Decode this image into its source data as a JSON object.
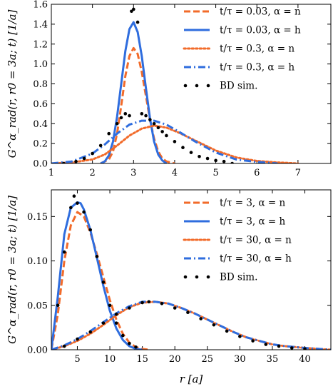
{
  "colors": {
    "orange": "#F26B2A",
    "blue": "#2F6DDE",
    "black": "#000000"
  },
  "chart_data": [
    {
      "type": "line",
      "ylabel": "G^α_rad(r, r0 = 3a; t) [1/a]",
      "xlabel": "",
      "xlim": [
        1.0,
        7.8
      ],
      "ylim": [
        0.0,
        1.6
      ],
      "xticks": [
        "1",
        "2",
        "3",
        "4",
        "5",
        "6",
        "7"
      ],
      "yticks": [
        "0.0",
        "0.2",
        "0.4",
        "0.6",
        "0.8",
        "1.0",
        "1.2",
        "1.4",
        "1.6"
      ],
      "legend_position": "top-right",
      "series": [
        {
          "name": "t/τ = 0.03, α = n",
          "style": "dashed",
          "color": "#F26B2A",
          "x": [
            2.2,
            2.4,
            2.5,
            2.6,
            2.7,
            2.8,
            2.9,
            3.0,
            3.1,
            3.2,
            3.3,
            3.4,
            3.5,
            3.6,
            3.7,
            3.8,
            4.0
          ],
          "y": [
            0.0,
            0.04,
            0.12,
            0.3,
            0.58,
            0.88,
            1.08,
            1.16,
            1.1,
            0.92,
            0.68,
            0.44,
            0.25,
            0.12,
            0.05,
            0.02,
            0.0
          ]
        },
        {
          "name": "t/τ = 0.03, α = h",
          "style": "solid",
          "color": "#2F6DDE",
          "x": [
            2.2,
            2.3,
            2.4,
            2.5,
            2.6,
            2.7,
            2.8,
            2.9,
            3.0,
            3.1,
            3.2,
            3.3,
            3.4,
            3.5,
            3.6,
            3.7,
            3.8
          ],
          "y": [
            0.0,
            0.02,
            0.08,
            0.22,
            0.47,
            0.8,
            1.13,
            1.35,
            1.42,
            1.32,
            1.08,
            0.76,
            0.45,
            0.22,
            0.09,
            0.03,
            0.0
          ]
        },
        {
          "name": "t/τ = 0.3, α = n",
          "style": "dotted",
          "color": "#F26B2A",
          "x": [
            1.0,
            1.5,
            2.0,
            2.3,
            2.6,
            2.9,
            3.2,
            3.5,
            3.8,
            4.1,
            4.5,
            5.0,
            5.5,
            6.0,
            6.5,
            7.0
          ],
          "y": [
            0.0,
            0.01,
            0.04,
            0.09,
            0.18,
            0.28,
            0.35,
            0.38,
            0.36,
            0.31,
            0.23,
            0.13,
            0.06,
            0.025,
            0.01,
            0.0
          ]
        },
        {
          "name": "t/τ = 0.3, α = h",
          "style": "dashdot",
          "color": "#2F6DDE",
          "x": [
            1.0,
            1.5,
            2.0,
            2.3,
            2.6,
            2.9,
            3.2,
            3.5,
            3.8,
            4.1,
            4.5,
            5.0,
            5.5,
            6.0,
            6.5
          ],
          "y": [
            0.0,
            0.02,
            0.1,
            0.19,
            0.3,
            0.39,
            0.43,
            0.43,
            0.39,
            0.32,
            0.22,
            0.11,
            0.04,
            0.015,
            0.0
          ]
        },
        {
          "name": "BD sim.",
          "style": "points",
          "color": "#000000",
          "x": [
            1.3,
            1.6,
            1.8,
            2.0,
            2.2,
            2.4,
            2.6,
            2.7,
            2.8,
            2.9,
            2.95,
            3.0,
            3.1,
            3.2,
            3.3,
            3.4,
            3.5,
            3.6,
            3.7,
            3.8,
            4.0,
            4.2,
            4.4,
            4.6,
            4.8,
            5.0,
            5.2,
            5.4
          ],
          "y": [
            0.0,
            0.02,
            0.05,
            0.1,
            0.18,
            0.3,
            0.4,
            0.46,
            0.5,
            0.48,
            1.53,
            1.55,
            1.42,
            0.5,
            0.48,
            0.44,
            0.4,
            0.36,
            0.32,
            0.28,
            0.22,
            0.16,
            0.11,
            0.07,
            0.05,
            0.03,
            0.02,
            0.0
          ]
        }
      ]
    },
    {
      "type": "line",
      "ylabel": "G^α_rad(r, r0 = 3a; t) [1/a]",
      "xlabel": "r [a]",
      "xlim": [
        1.0,
        44.0
      ],
      "ylim": [
        0.0,
        0.18
      ],
      "xticks": [
        "5",
        "10",
        "15",
        "20",
        "25",
        "30",
        "35",
        "40"
      ],
      "yticks": [
        "0.00",
        "0.05",
        "0.10",
        "0.15"
      ],
      "legend_position": "top-right",
      "series": [
        {
          "name": "t/τ = 3, α = n",
          "style": "dashed",
          "color": "#F26B2A",
          "x": [
            1.0,
            2.0,
            3.0,
            4.0,
            5.0,
            6.0,
            7.0,
            8.0,
            9.0,
            10.0,
            11.0,
            12.0,
            13.0,
            14.0,
            15.0,
            16.0
          ],
          "y": [
            0.0,
            0.04,
            0.1,
            0.14,
            0.155,
            0.15,
            0.132,
            0.108,
            0.082,
            0.056,
            0.034,
            0.018,
            0.008,
            0.003,
            0.001,
            0.0
          ]
        },
        {
          "name": "t/τ = 3, α = h",
          "style": "solid",
          "color": "#2F6DDE",
          "x": [
            1.0,
            2.0,
            3.0,
            4.0,
            5.0,
            5.5,
            6.0,
            7.0,
            8.0,
            9.0,
            10.0,
            11.0,
            12.0,
            13.0,
            14.0,
            15.0
          ],
          "y": [
            0.0,
            0.06,
            0.13,
            0.16,
            0.166,
            0.165,
            0.158,
            0.135,
            0.104,
            0.072,
            0.044,
            0.024,
            0.011,
            0.004,
            0.001,
            0.0
          ]
        },
        {
          "name": "t/τ = 30, α = n",
          "style": "dotted",
          "color": "#F26B2A",
          "x": [
            1.0,
            3.0,
            5.0,
            7.0,
            9.0,
            11.0,
            13.0,
            15.0,
            17.0,
            19.0,
            21.0,
            23.0,
            25.0,
            27.0,
            29.0,
            31.0,
            33.0,
            35.0,
            37.0,
            40.0,
            44.0
          ],
          "y": [
            0.0,
            0.004,
            0.01,
            0.018,
            0.028,
            0.039,
            0.048,
            0.053,
            0.054,
            0.052,
            0.047,
            0.041,
            0.034,
            0.027,
            0.02,
            0.014,
            0.01,
            0.006,
            0.004,
            0.002,
            0.0
          ]
        },
        {
          "name": "t/τ = 30, α = h",
          "style": "dashdot",
          "color": "#2F6DDE",
          "x": [
            1.0,
            3.0,
            5.0,
            7.0,
            9.0,
            11.0,
            13.0,
            15.0,
            17.0,
            19.0,
            21.0,
            23.0,
            25.0,
            27.0,
            29.0,
            31.0,
            33.0,
            35.0,
            37.0,
            40.0,
            44.0
          ],
          "y": [
            0.0,
            0.005,
            0.012,
            0.021,
            0.031,
            0.041,
            0.049,
            0.054,
            0.054,
            0.052,
            0.047,
            0.041,
            0.034,
            0.027,
            0.02,
            0.014,
            0.01,
            0.006,
            0.004,
            0.002,
            0.0
          ]
        },
        {
          "name": "BD sim.",
          "style": "points",
          "color": "#000000",
          "x": [
            2.0,
            3.0,
            4.0,
            4.5,
            5.0,
            6.0,
            7.0,
            8.0,
            9.0,
            10.0,
            11.0,
            12.0,
            13.0,
            14.0,
            16.0,
            18.0,
            20.0,
            22.0,
            24.0,
            26.0,
            28.0,
            30.0,
            32.0,
            34.0,
            36.0,
            38.0,
            40.0,
            3.0,
            5.0,
            7.0,
            9.0,
            11.0,
            13.0,
            15.0
          ],
          "y": [
            0.05,
            0.11,
            0.16,
            0.173,
            0.165,
            0.155,
            0.135,
            0.105,
            0.076,
            0.05,
            0.03,
            0.016,
            0.007,
            0.003,
            0.054,
            0.052,
            0.047,
            0.042,
            0.035,
            0.028,
            0.021,
            0.015,
            0.01,
            0.006,
            0.004,
            0.002,
            0.001,
            0.004,
            0.012,
            0.02,
            0.03,
            0.04,
            0.047,
            0.053
          ]
        }
      ]
    }
  ]
}
